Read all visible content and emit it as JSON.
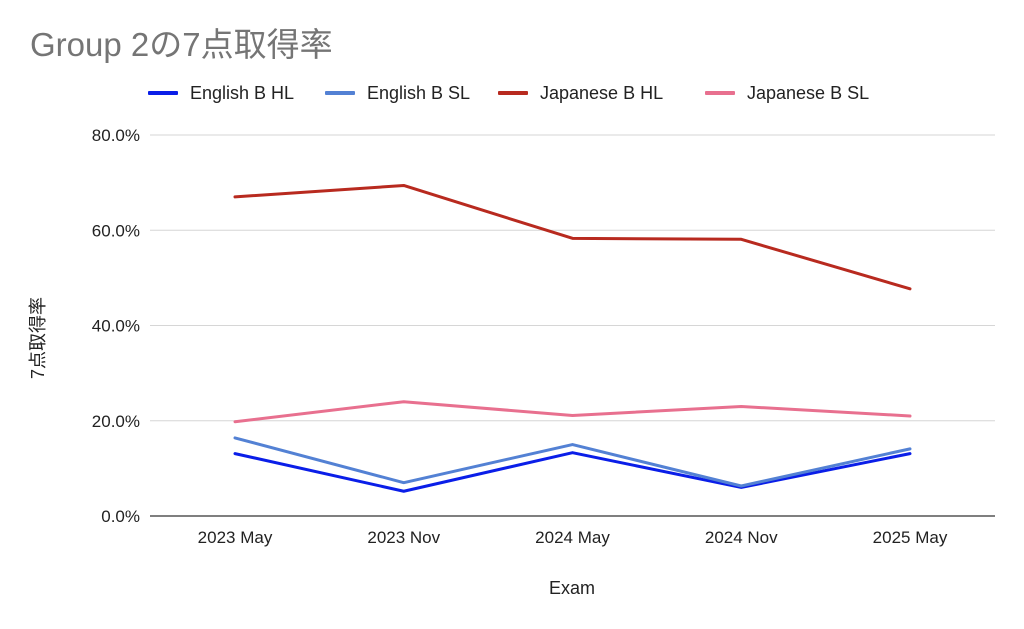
{
  "chart_data": {
    "type": "line",
    "title": "Group 2の7点取得率",
    "xlabel": "Exam",
    "ylabel": "7点取得率",
    "categories": [
      "2023 May",
      "2023 Nov",
      "2024 May",
      "2024 Nov",
      "2025 May"
    ],
    "ylim": [
      0,
      0.8
    ],
    "yticks": [
      "0.0%",
      "20.0%",
      "40.0%",
      "60.0%",
      "80.0%"
    ],
    "grid": true,
    "legend_position": "top",
    "series": [
      {
        "name": "English B HL",
        "color": "#0a1ee8",
        "values": [
          0.131,
          0.052,
          0.133,
          0.06,
          0.131
        ]
      },
      {
        "name": "English B SL",
        "color": "#5381d4",
        "values": [
          0.164,
          0.07,
          0.15,
          0.063,
          0.141
        ]
      },
      {
        "name": "Japanese B HL",
        "color": "#b82a1f",
        "values": [
          0.67,
          0.694,
          0.583,
          0.581,
          0.477
        ]
      },
      {
        "name": "Japanese B SL",
        "color": "#e8708f",
        "values": [
          0.198,
          0.24,
          0.211,
          0.23,
          0.21
        ]
      }
    ]
  }
}
